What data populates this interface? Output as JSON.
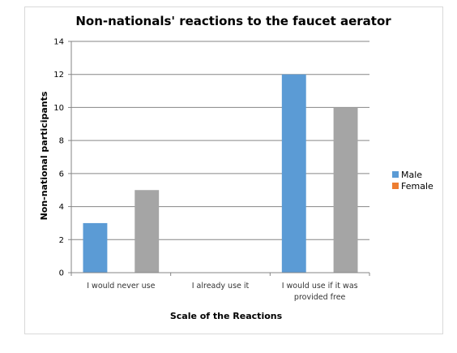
{
  "chart_data": {
    "type": "bar",
    "title": "Non-nationals' reactions to the faucet aerator",
    "xlabel": "Scale of the  Reactions",
    "ylabel": "Non-national participants",
    "categories": [
      [
        "I would never use"
      ],
      [
        "I already use it"
      ],
      [
        "I would use if it was",
        "provided free"
      ]
    ],
    "series": [
      {
        "name": "Male",
        "color": "#5b9bd5",
        "values": [
          3,
          0,
          12
        ]
      },
      {
        "name": "Female",
        "color": "#ed7d31",
        "values": [
          0,
          0,
          0
        ]
      },
      {
        "name": "",
        "color": "#a5a5a5",
        "values": [
          5,
          0,
          10
        ]
      }
    ],
    "ylim": [
      0,
      14
    ],
    "yticks": [
      0,
      2,
      4,
      6,
      8,
      10,
      12,
      14
    ],
    "grid": true,
    "legend_position": "right",
    "legend": [
      "Male",
      "Female"
    ]
  }
}
